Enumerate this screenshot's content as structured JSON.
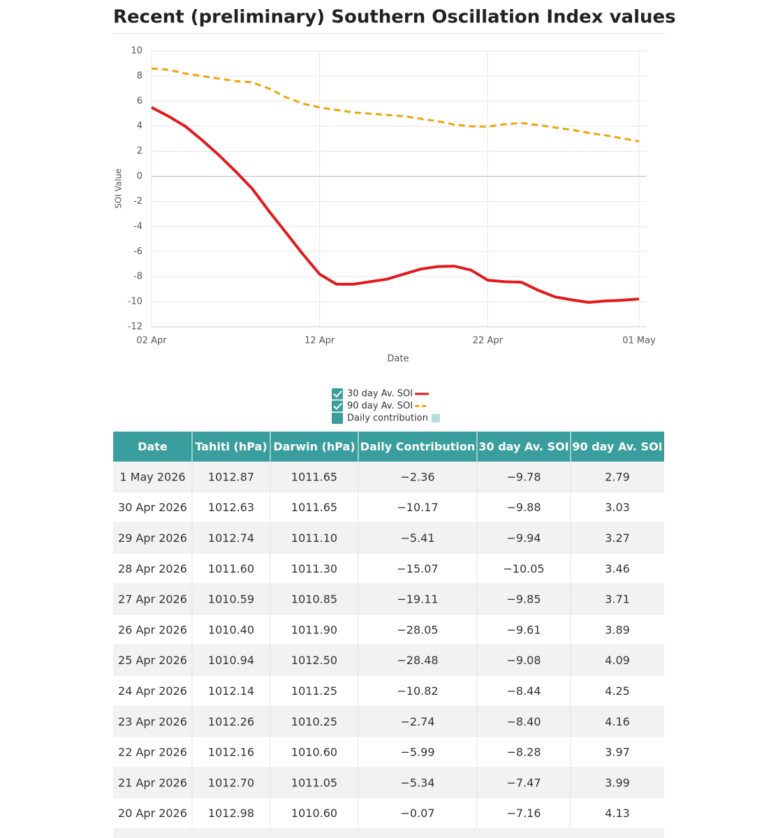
{
  "title": "Recent (preliminary) Southern Oscillation Index values",
  "chart_data": {
    "type": "line",
    "x_label": "Date",
    "y_label": "SOI Value",
    "categories": [
      "02 Apr",
      null,
      null,
      null,
      null,
      null,
      null,
      null,
      null,
      null,
      "12 Apr",
      null,
      null,
      null,
      null,
      null,
      null,
      null,
      null,
      null,
      "22 Apr",
      null,
      null,
      null,
      null,
      null,
      null,
      null,
      null,
      "01 May"
    ],
    "series": [
      {
        "name": "30 day Av. SOI",
        "color": "#e31a1c",
        "style": "solid",
        "visible": true,
        "values": [
          5.5,
          4.8,
          4.0,
          2.9,
          1.7,
          0.4,
          -1.0,
          -2.8,
          -4.5,
          -6.2,
          -7.8,
          -8.6,
          -8.6,
          -8.4,
          -8.2,
          -7.8,
          -7.4,
          -7.2,
          -7.16,
          -7.47,
          -8.28,
          -8.4,
          -8.44,
          -9.08,
          -9.61,
          -9.85,
          -10.05,
          -9.94,
          -9.88,
          -9.78
        ]
      },
      {
        "name": "90 day Av. SOI",
        "color": "#f0a30a",
        "style": "dashed",
        "visible": true,
        "values": [
          8.6,
          8.5,
          8.2,
          8.0,
          7.8,
          7.6,
          7.5,
          7.0,
          6.3,
          5.8,
          5.5,
          5.3,
          5.1,
          5.0,
          4.9,
          4.8,
          4.6,
          4.4,
          4.13,
          3.99,
          3.97,
          4.16,
          4.25,
          4.09,
          3.89,
          3.71,
          3.46,
          3.27,
          3.03,
          2.79
        ]
      }
    ],
    "hidden_series": {
      "name": "Daily contribution",
      "color": "#b2dfdb",
      "visible": false
    },
    "ylim": [
      -12,
      10
    ],
    "yticks": [
      -12,
      -10,
      -8,
      -6,
      -4,
      -2,
      0,
      2,
      4,
      6,
      8,
      10
    ],
    "grid": true
  },
  "table": {
    "header": [
      "Date",
      "Tahiti (hPa)",
      "Darwin (hPa)",
      "Daily Contribution",
      "30 day Av. SOI",
      "90 day Av. SOI"
    ],
    "rows": [
      [
        "1 May 2026",
        "1012.87",
        "1011.65",
        "−2.36",
        "−9.78",
        "2.79"
      ],
      [
        "30 Apr 2026",
        "1012.63",
        "1011.65",
        "−10.17",
        "−9.88",
        "3.03"
      ],
      [
        "29 Apr 2026",
        "1012.74",
        "1011.10",
        "−5.41",
        "−9.94",
        "3.27"
      ],
      [
        "28 Apr 2026",
        "1011.60",
        "1011.30",
        "−15.07",
        "−10.05",
        "3.46"
      ],
      [
        "27 Apr 2026",
        "1010.59",
        "1010.85",
        "−19.11",
        "−9.85",
        "3.71"
      ],
      [
        "26 Apr 2026",
        "1010.40",
        "1011.90",
        "−28.05",
        "−9.61",
        "3.89"
      ],
      [
        "25 Apr 2026",
        "1010.94",
        "1012.50",
        "−28.48",
        "−9.08",
        "4.09"
      ],
      [
        "24 Apr 2026",
        "1012.14",
        "1011.25",
        "−10.82",
        "−8.44",
        "4.25"
      ],
      [
        "23 Apr 2026",
        "1012.26",
        "1010.25",
        "−2.74",
        "−8.40",
        "4.16"
      ],
      [
        "22 Apr 2026",
        "1012.16",
        "1010.60",
        "−5.99",
        "−8.28",
        "3.97"
      ],
      [
        "21 Apr 2026",
        "1012.70",
        "1011.05",
        "−5.34",
        "−7.47",
        "3.99"
      ],
      [
        "20 Apr 2026",
        "1012.98",
        "1010.60",
        "−0.07",
        "−7.16",
        "4.13"
      ]
    ]
  }
}
